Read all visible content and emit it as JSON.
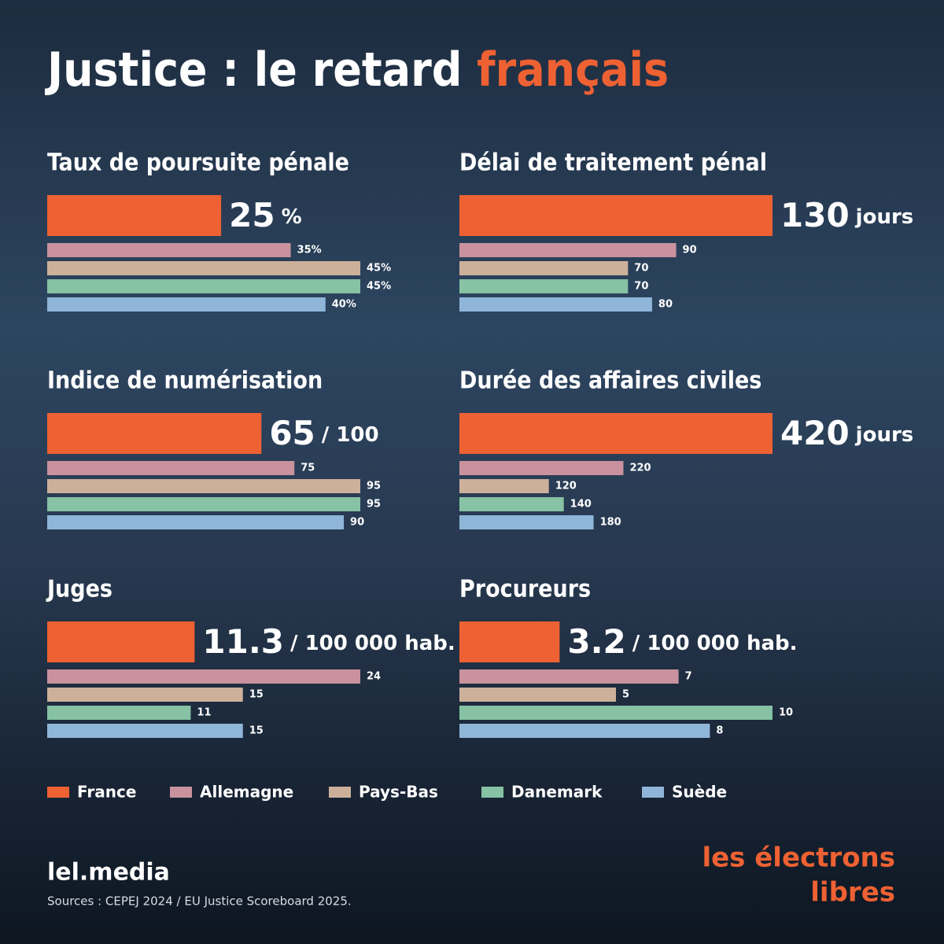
{
  "title": "Justice : le retard",
  "title_highlight": "français",
  "legend": {
    "names": [
      "France",
      "Allemagne",
      "Pays-Bas",
      "Danemark",
      "Suède"
    ],
    "colors": [
      "#ee6133",
      "#c9929e",
      "#cdb09a",
      "#86c2a3",
      "#8fb5d9"
    ]
  },
  "chart_data": [
    {
      "type": "bar",
      "title": "Taux de poursuite pénale",
      "values": [
        25,
        35,
        45,
        45,
        40
      ],
      "value_labels": [
        "25",
        "35%",
        "45%",
        "45%",
        "40%"
      ],
      "unit": "%"
    },
    {
      "type": "bar",
      "title": "Délai de traitement pénal",
      "values": [
        130,
        90,
        70,
        70,
        80
      ],
      "unit": "jours"
    },
    {
      "type": "bar",
      "title": "Indice de numérisation",
      "values": [
        65,
        75,
        95,
        95,
        90
      ],
      "unit": "/ 100"
    },
    {
      "type": "bar",
      "title": "Durée des affaires civiles",
      "values": [
        420,
        220,
        120,
        140,
        180
      ],
      "unit": "jours"
    },
    {
      "type": "bar",
      "title": "Juges",
      "values": [
        11.3,
        24,
        15,
        11,
        15
      ],
      "unit": "/ 100 000 hab."
    },
    {
      "type": "bar",
      "title": "Procureurs",
      "values": [
        3.2,
        7,
        5,
        10,
        8
      ],
      "unit": "/ 100 000 hab."
    }
  ],
  "footer": {
    "site": "lel.media",
    "sources": "Sources : CEPEJ 2024 / EU Justice Scoreboard 2025."
  },
  "logo": {
    "line1": "les électrons",
    "line2": "libres"
  }
}
